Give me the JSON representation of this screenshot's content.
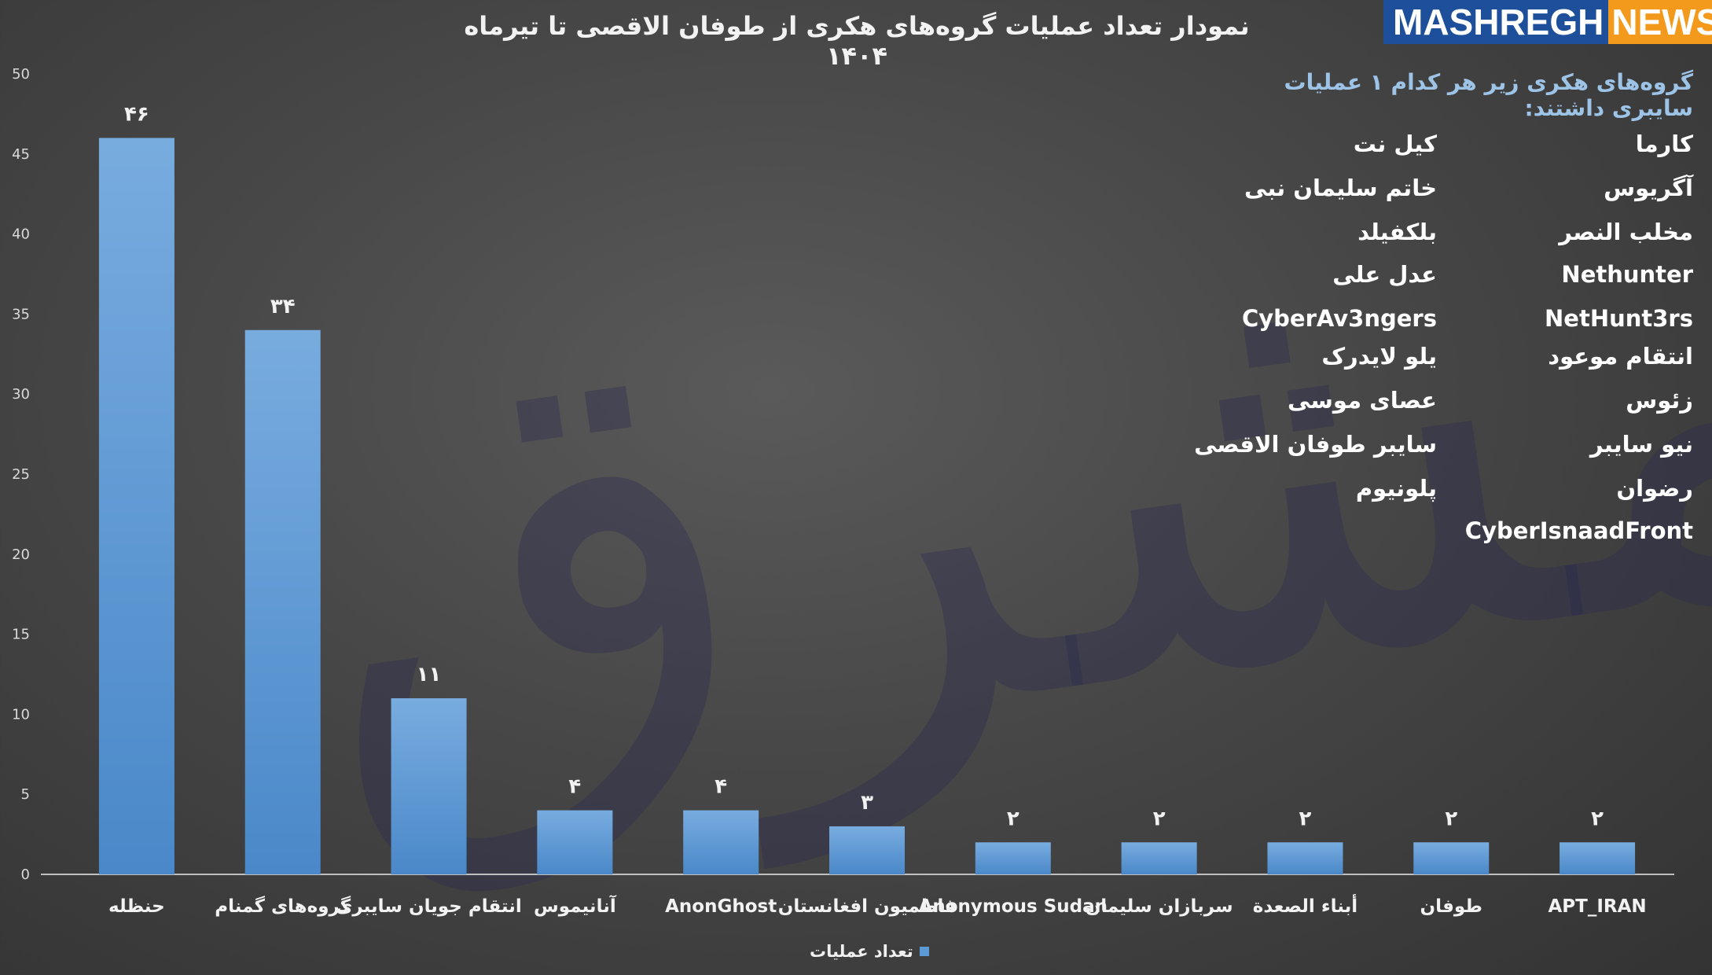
{
  "chart_data": {
    "type": "bar",
    "title": "نمودار تعداد عملیات گروه‌های هکری از  طوفان الاقصی تا تیرماه ۱۴۰۴",
    "categories": [
      "حنظله",
      "گروه‌های گمنام",
      "انتقام جویان سایبری",
      "آنانیموس",
      "AnonGhost",
      "فاطمیون افغانستان",
      "Anonymous Sudan",
      "سربازان سلیمان",
      "أبناء الصعدة",
      "طوفان",
      "APT_IRAN"
    ],
    "series": [
      {
        "name": "تعداد عملیات",
        "values": [
          46,
          34,
          11,
          4,
          4,
          3,
          2,
          2,
          2,
          2,
          2
        ]
      }
    ],
    "data_labels": [
      "۴۶",
      "۳۴",
      "۱۱",
      "۴",
      "۴",
      "۳",
      "۲",
      "۲",
      "۲",
      "۲",
      "۲"
    ],
    "yticks": [
      "0",
      "5",
      "10",
      "15",
      "20",
      "25",
      "30",
      "35",
      "40",
      "45",
      "50"
    ],
    "ylim": [
      0,
      50
    ],
    "grid": false,
    "legend": "bottom",
    "bar_color": "#5b9bd5"
  },
  "logo": {
    "part1": "MASHREGH",
    "part2": "NEWS"
  },
  "note": "گروه‌های هکری زیر هر کدام ۱ عملیات سایبری داشتند:",
  "groups_right": [
    "کارما",
    "آگریوس",
    "مخلب النصر",
    "Nethunter",
    "NetHunt3rs",
    "انتقام موعود",
    "زئوس",
    "نیو سایبر",
    "رضوان",
    "CyberIsnaadFront"
  ],
  "groups_left": [
    "کیل نت",
    "خاتم سلیمان نبی",
    "بلکفیلد",
    "عدل علی",
    "CyberAv3ngers",
    "یلو لایدرک",
    "عصای موسی",
    "سایبر طوفان الاقصی",
    "پلونیوم"
  ],
  "watermark": "مشرق"
}
